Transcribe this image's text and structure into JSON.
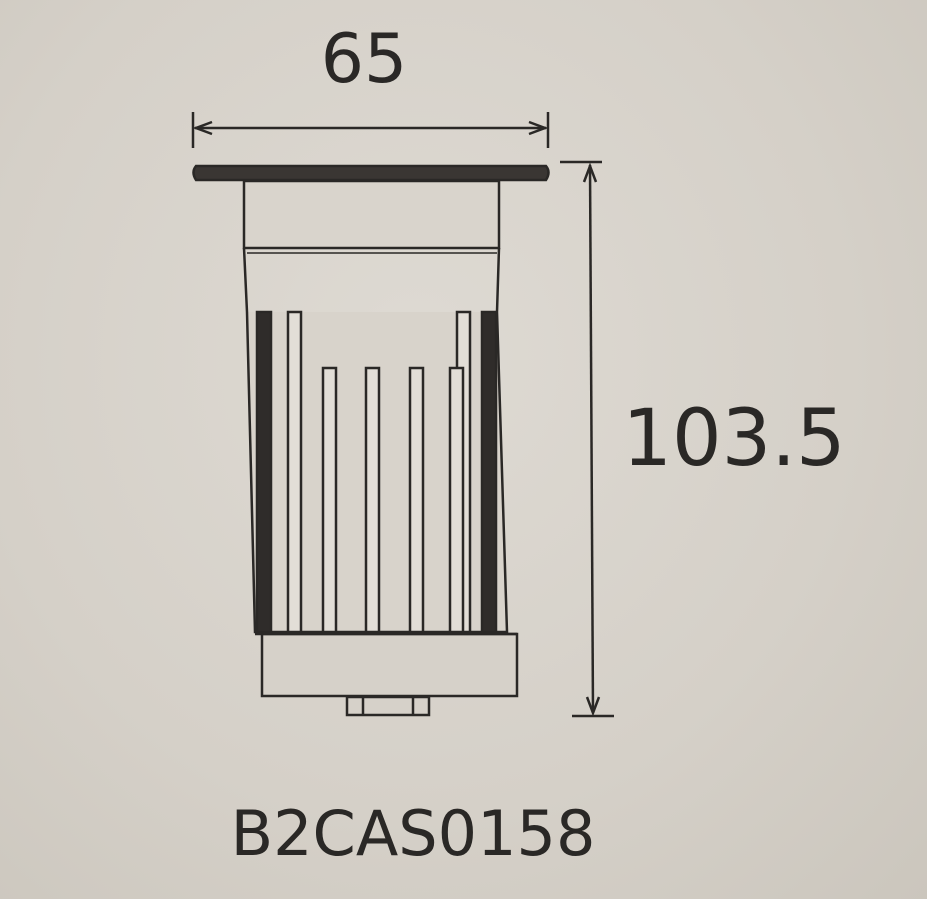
{
  "dimensions": {
    "width_label": "65",
    "height_label": "103.5"
  },
  "model_code": "B2CAS0158",
  "colors": {
    "background": "#d6d1c9",
    "line": "#2a2826",
    "fin_dark": "#2f2c2a"
  }
}
